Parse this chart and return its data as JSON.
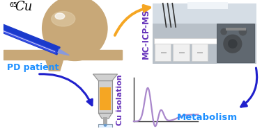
{
  "bg_color": "#ffffff",
  "label_pd": "PD patient",
  "label_cu": "Cu isolation",
  "label_mcicp": "MC-ICP-MS",
  "label_metabolism": "Metabolism",
  "cu_text": "Cu",
  "cu_superscript": "65",
  "arrow_orange_color": "#F5A623",
  "arrow_blue_color": "#2020CC",
  "text_blue_bright": "#1E90FF",
  "text_purple_color": "#6633BB",
  "curve_color": "#AA88CC",
  "tube_orange": "#F5A623",
  "skin_color": "#C8A878",
  "needle_blue": "#1A3ACC",
  "figure_width": 3.76,
  "figure_height": 1.89
}
